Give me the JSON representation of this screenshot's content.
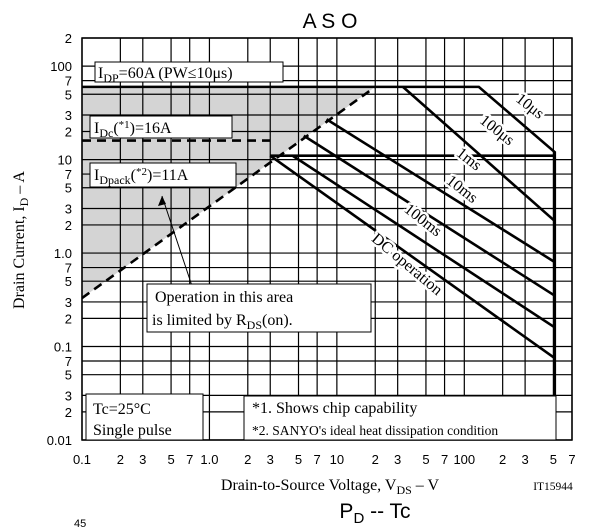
{
  "chart_data": {
    "type": "line",
    "title": "A S O",
    "x_label": [
      "Drain-to-Source Voltage, V",
      "DS",
      " – V"
    ],
    "y_label": [
      "Drain Current, I",
      "D",
      " – A"
    ],
    "log": true,
    "grid": true,
    "xlim": [
      0.1,
      700
    ],
    "ylim": [
      0.01,
      200
    ],
    "xticks": [
      0.1,
      {
        "value": 0.2,
        "label": "2"
      },
      {
        "value": 0.3,
        "label": "3"
      },
      {
        "value": 0.5,
        "label": "5"
      },
      {
        "value": 0.7,
        "label": "7"
      },
      {
        "value": 1,
        "label": "1.0"
      },
      {
        "value": 2,
        "label": "2"
      },
      {
        "value": 3,
        "label": "3"
      },
      {
        "value": 5,
        "label": "5"
      },
      {
        "value": 7,
        "label": "7"
      },
      10,
      {
        "value": 20,
        "label": "2"
      },
      {
        "value": 30,
        "label": "3"
      },
      {
        "value": 50,
        "label": "5"
      },
      {
        "value": 70,
        "label": "7"
      },
      100,
      {
        "value": 200,
        "label": "2"
      },
      {
        "value": 300,
        "label": "3"
      },
      {
        "value": 500,
        "label": "5"
      },
      {
        "value": 700,
        "label": "7"
      }
    ],
    "yticks": [
      0.01,
      {
        "value": 0.02,
        "label": "2"
      },
      {
        "value": 0.03,
        "label": "3"
      },
      {
        "value": 0.05,
        "label": "5"
      },
      {
        "value": 0.07,
        "label": "7"
      },
      0.1,
      {
        "value": 0.2,
        "label": "2"
      },
      {
        "value": 0.3,
        "label": "3"
      },
      {
        "value": 0.5,
        "label": "5"
      },
      {
        "value": 0.7,
        "label": "7"
      },
      {
        "value": 1,
        "label": "1.0"
      },
      {
        "value": 2,
        "label": "2"
      },
      {
        "value": 3,
        "label": "3"
      },
      {
        "value": 5,
        "label": "5"
      },
      {
        "value": 7,
        "label": "7"
      },
      10,
      {
        "value": 20,
        "label": "2"
      },
      {
        "value": 30,
        "label": "3"
      },
      {
        "value": 50,
        "label": "5"
      },
      {
        "value": 70,
        "label": "7"
      },
      100,
      {
        "value": 200,
        "label": "2"
      }
    ],
    "series": [
      {
        "name": "10μs",
        "color": "#000000",
        "x": [
          0.1,
          130,
          513,
          513
        ],
        "values": [
          60,
          60,
          12,
          0.01
        ]
      },
      {
        "name": "100μs",
        "color": "#000000",
        "x": [
          33,
          513
        ],
        "values": [
          60,
          2.2
        ]
      },
      {
        "name": "1ms",
        "color": "#000000",
        "x": [
          8.3,
          513
        ],
        "values": [
          27,
          0.8
        ]
      },
      {
        "name": "10ms",
        "color": "#000000",
        "x": [
          5.5,
          513
        ],
        "values": [
          18,
          0.35
        ]
      },
      {
        "name": "100ms",
        "color": "#000000",
        "x": [
          4.5,
          513
        ],
        "values": [
          11,
          0.16
        ]
      },
      {
        "name": "DC operation",
        "color": "#000000",
        "x": [
          3,
          513
        ],
        "values": [
          11,
          0.075
        ]
      },
      {
        "color": "#000000",
        "x": [
          3,
          513
        ],
        "values": [
          11,
          11
        ]
      },
      {
        "color": "#000000",
        "dashed": true,
        "x": [
          0.1,
          3
        ],
        "values": [
          16,
          16
        ]
      },
      {
        "color": "#000000",
        "dashed": true,
        "shade": "#d4d4d4",
        "x": [
          0.1,
          20
        ],
        "values": [
          0.33,
          60
        ]
      }
    ],
    "annotations": {
      "idp": [
        "I",
        "DP",
        "=60A (PW≤10μs)"
      ],
      "idc": [
        "I",
        "Dc",
        "(",
        "*1",
        ")=16A"
      ],
      "idpack": [
        "I",
        "Dpack",
        "(",
        "*2",
        ")=11A"
      ],
      "rds": [
        "Operation in this area",
        "is limited by R",
        "DS",
        "(on)."
      ],
      "conditions": [
        "Tc=25°C",
        "Single pulse"
      ],
      "notes": [
        "*1. Shows chip capability",
        "*2. SANYO's ideal heat dissipation condition"
      ],
      "code": "IT15944"
    }
  },
  "footer": {
    "page": "45",
    "next_title": [
      "P",
      "D",
      " -- Tc"
    ]
  }
}
